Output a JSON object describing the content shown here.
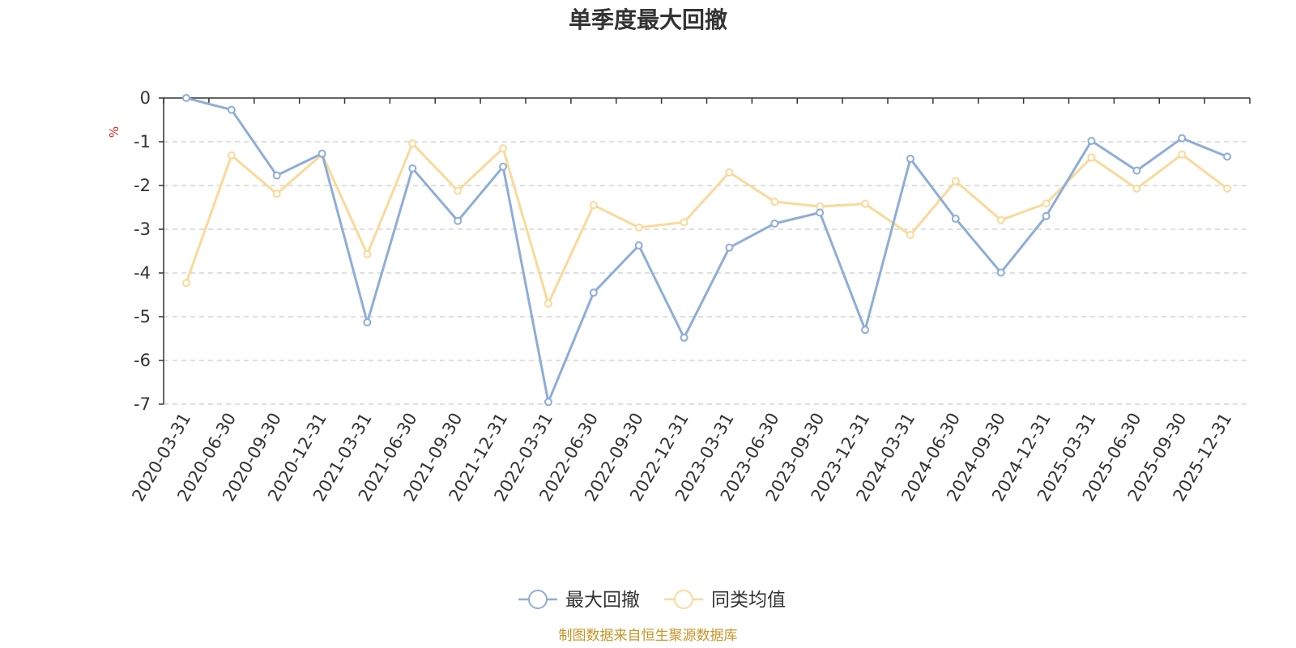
{
  "chart_data": {
    "type": "line",
    "title": "单季度最大回撤",
    "ylabel": "%",
    "xlabel": "",
    "ylim": [
      -7,
      0
    ],
    "yticks": [
      "0",
      "-1",
      "-2",
      "-3",
      "-4",
      "-5",
      "-6",
      "-7"
    ],
    "grid": "horizontal dashed",
    "legend_position": "bottom-center",
    "categories": [
      "2020-03-31",
      "2020-06-30",
      "2020-09-30",
      "2020-12-31",
      "2021-03-31",
      "2021-06-30",
      "2021-09-30",
      "2021-12-31",
      "2022-03-31",
      "2022-06-30",
      "2022-09-30",
      "2022-12-31",
      "2023-03-31",
      "2023-06-30",
      "2023-09-30",
      "2023-12-31",
      "2024-03-31",
      "2024-06-30",
      "2024-09-30",
      "2024-12-31",
      "2025-03-31",
      "2025-06-30",
      "2025-09-30",
      "2025-12-31"
    ],
    "series": [
      {
        "name": "最大回撤",
        "color": "#8eadd8",
        "values": [
          0,
          -0.27,
          -1.77,
          -1.27,
          -5.13,
          -1.61,
          -2.81,
          -1.57,
          -6.95,
          -4.45,
          -3.37,
          -5.48,
          -3.42,
          -2.87,
          -2.62,
          -5.3,
          -1.39,
          -2.76,
          -3.99,
          -2.7,
          -0.98,
          -1.66,
          -0.92,
          -1.34
        ]
      },
      {
        "name": "同类均值",
        "color": "#fad999",
        "values": [
          -4.23,
          -1.31,
          -2.19,
          -1.29,
          -3.57,
          -1.04,
          -2.12,
          -1.15,
          -4.7,
          -2.45,
          -2.96,
          -2.84,
          -1.7,
          -2.37,
          -2.48,
          -2.42,
          -3.13,
          -1.9,
          -2.79,
          -2.41,
          -1.36,
          -2.07,
          -1.29,
          -2.07
        ]
      }
    ],
    "source": "制图数据来自恒生聚源数据库"
  }
}
